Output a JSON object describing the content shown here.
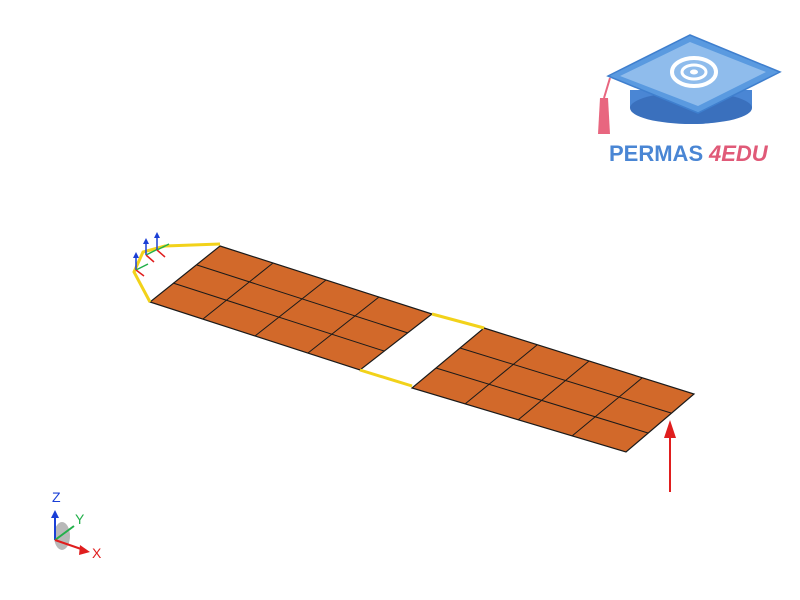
{
  "logo": {
    "brand_main": "PERMAS",
    "brand_accent": "4EDU",
    "colors": {
      "main": "#4a86d4",
      "accent": "#e05a78",
      "cap": "#5a9ae0",
      "cap_light": "#a9ccf2",
      "tassel": "#e8667f"
    },
    "icon": "graduation-cap-icon"
  },
  "triad": {
    "z_label": "Z",
    "y_label": "Y",
    "x_label": "X",
    "colors": {
      "z": "#1a3fd6",
      "y": "#22b04a",
      "x": "#e01e1e"
    }
  },
  "model": {
    "shell_color": "#d2692a",
    "mesh_line_color": "#1a1a1a",
    "beam_color": "#f2d21a",
    "load_color": "#e01e1e",
    "support_icon": "fixed-support-icon",
    "load_icon": "force-arrow-icon"
  }
}
